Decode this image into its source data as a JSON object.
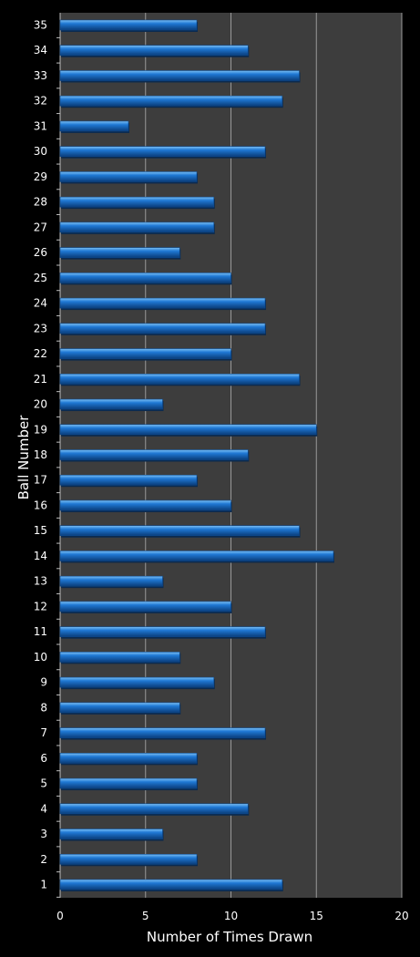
{
  "colors": {
    "background": "#000000",
    "plot_area": "#3d3d3d",
    "gridline": "#9a9a9a",
    "bar_fill": "#1f78d4",
    "bar_highlight": "#7cc0f5",
    "bar_shadow": "#0a3d7a",
    "text": "#ffffff"
  },
  "chart_data": {
    "type": "bar",
    "orientation": "horizontal",
    "title": "",
    "xlabel": "Number of Times Drawn",
    "ylabel": "Ball Number",
    "xlim": [
      0,
      20
    ],
    "xticks": [
      0,
      5,
      10,
      15,
      20
    ],
    "grid": true,
    "legend": "none",
    "categories": [
      "1",
      "2",
      "3",
      "4",
      "5",
      "6",
      "7",
      "8",
      "9",
      "10",
      "11",
      "12",
      "13",
      "14",
      "15",
      "16",
      "17",
      "18",
      "19",
      "20",
      "21",
      "22",
      "23",
      "24",
      "25",
      "26",
      "27",
      "28",
      "29",
      "30",
      "31",
      "32",
      "33",
      "34",
      "35"
    ],
    "values": [
      13,
      8,
      6,
      11,
      8,
      8,
      12,
      7,
      9,
      7,
      12,
      10,
      6,
      16,
      14,
      10,
      8,
      11,
      15,
      6,
      14,
      10,
      12,
      12,
      10,
      7,
      9,
      9,
      8,
      12,
      4,
      13,
      14,
      11,
      8
    ]
  }
}
